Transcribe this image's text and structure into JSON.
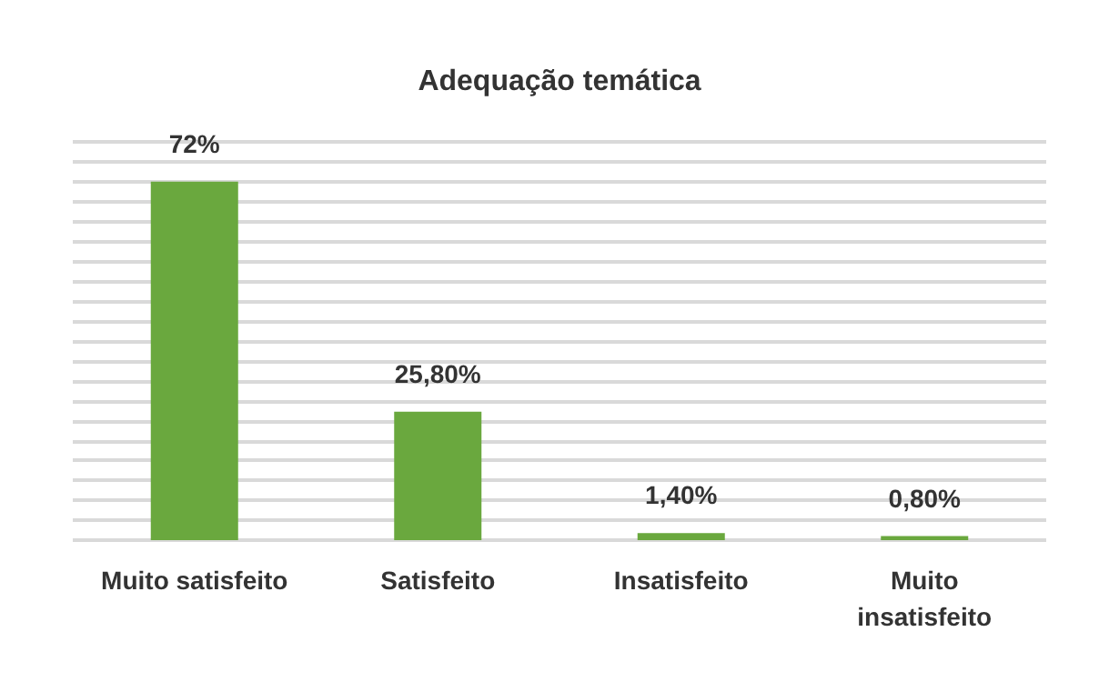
{
  "chart_data": {
    "type": "bar",
    "title": "Adequação temática",
    "categories": [
      "Muito satisfeito",
      "Satisfeito",
      "Insatisfeito",
      "Muito\ninsatisfeito"
    ],
    "values": [
      72,
      25.8,
      1.4,
      0.8
    ],
    "value_labels": [
      "72%",
      "25,80%",
      "1,40%",
      "0,80%"
    ],
    "color": "#6aa83e",
    "ylim": [
      0,
      80
    ],
    "yticks": [
      {
        "value": 0,
        "label": null
      },
      {
        "value": 4,
        "label": null
      },
      {
        "value": 8,
        "label": null
      },
      {
        "value": 12,
        "label": null
      },
      {
        "value": 16,
        "label": null
      },
      {
        "value": 20,
        "label": null
      },
      {
        "value": 24,
        "label": null
      },
      {
        "value": 28,
        "label": null
      },
      {
        "value": 32,
        "label": null
      },
      {
        "value": 36,
        "label": null
      },
      {
        "value": 40,
        "label": null
      },
      {
        "value": 44,
        "label": null
      },
      {
        "value": 48,
        "label": null
      },
      {
        "value": 52,
        "label": null
      },
      {
        "value": 56,
        "label": null
      },
      {
        "value": 60,
        "label": null
      },
      {
        "value": 64,
        "label": null
      },
      {
        "value": 68,
        "label": null
      },
      {
        "value": 72,
        "label": null
      },
      {
        "value": 76,
        "label": null
      },
      {
        "value": 80,
        "label": null
      }
    ],
    "tick_labels": "x",
    "grid": "y"
  }
}
